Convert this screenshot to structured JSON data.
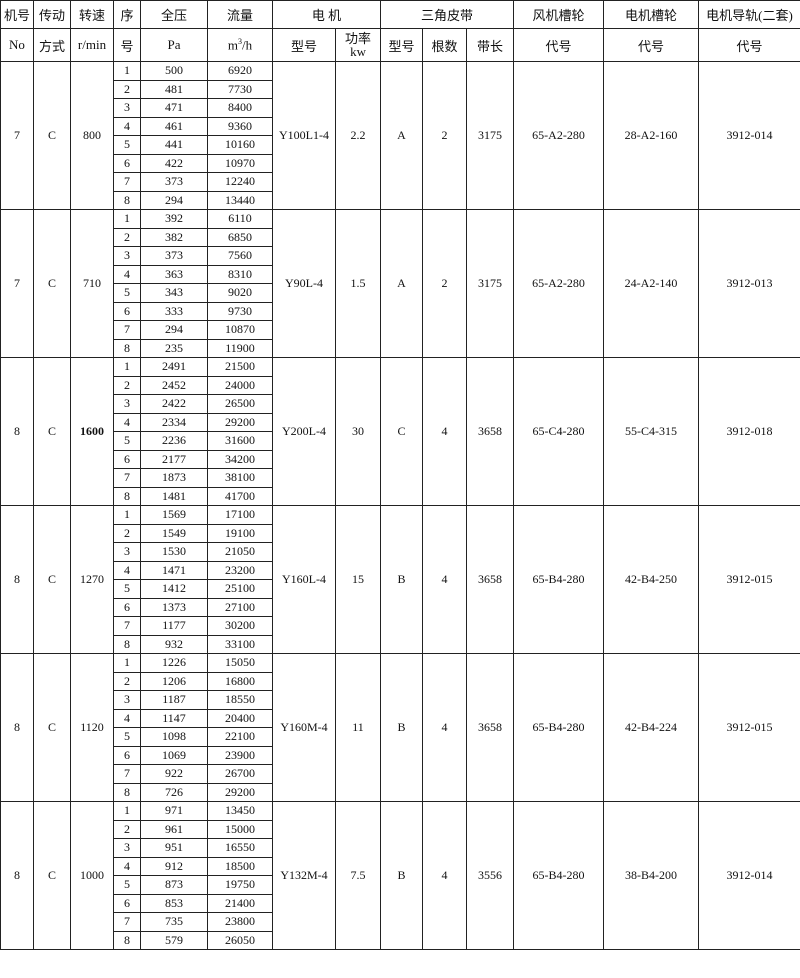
{
  "header": {
    "no_top": "机号",
    "no_bottom": "No",
    "drive_top": "传动",
    "drive_bottom": "方式",
    "speed_top": "转速",
    "speed_bottom": "r/min",
    "seq_top": "序",
    "seq_bottom": "号",
    "pressure_top": "全压",
    "pressure_bottom": "Pa",
    "flow_top": "流量",
    "flow_unit_m": "m",
    "flow_unit_sup": "3",
    "flow_unit_h": "/h",
    "motor": "电 机",
    "motor_model": "型号",
    "motor_power": "功率",
    "motor_power_unit": "kw",
    "belt": "三角皮带",
    "belt_model": "型号",
    "belt_count": "根数",
    "belt_length": "带长",
    "fan_pulley": "风机槽轮",
    "fan_pulley_code": "代号",
    "motor_pulley": "电机槽轮",
    "motor_pulley_code": "代号",
    "rail": "电机导轨(二套)",
    "rail_code": "代号"
  },
  "groups": [
    {
      "no": "7",
      "drive": "C",
      "speed": "800",
      "motor_model": "Y100L1-4",
      "power": "2.2",
      "belt_model": "A",
      "belt_count": "2",
      "belt_length": "3175",
      "fan_pulley": "65-A2-280",
      "motor_pulley": "28-A2-160",
      "rail": "3912-014",
      "bold": false,
      "rows": [
        [
          "1",
          "500",
          "6920"
        ],
        [
          "2",
          "481",
          "7730"
        ],
        [
          "3",
          "471",
          "8400"
        ],
        [
          "4",
          "461",
          "9360"
        ],
        [
          "5",
          "441",
          "10160"
        ],
        [
          "6",
          "422",
          "10970"
        ],
        [
          "7",
          "373",
          "12240"
        ],
        [
          "8",
          "294",
          "13440"
        ]
      ]
    },
    {
      "no": "7",
      "drive": "C",
      "speed": "710",
      "motor_model": "Y90L-4",
      "power": "1.5",
      "belt_model": "A",
      "belt_count": "2",
      "belt_length": "3175",
      "fan_pulley": "65-A2-280",
      "motor_pulley": "24-A2-140",
      "rail": "3912-013",
      "bold": false,
      "rows": [
        [
          "1",
          "392",
          "6110"
        ],
        [
          "2",
          "382",
          "6850"
        ],
        [
          "3",
          "373",
          "7560"
        ],
        [
          "4",
          "363",
          "8310"
        ],
        [
          "5",
          "343",
          "9020"
        ],
        [
          "6",
          "333",
          "9730"
        ],
        [
          "7",
          "294",
          "10870"
        ],
        [
          "8",
          "235",
          "11900"
        ]
      ]
    },
    {
      "no": "8",
      "drive": "C",
      "speed": "1600",
      "motor_model": "Y200L-4",
      "power": "30",
      "belt_model": "C",
      "belt_count": "4",
      "belt_length": "3658",
      "fan_pulley": "65-C4-280",
      "motor_pulley": "55-C4-315",
      "rail": "3912-018",
      "bold": true,
      "rows": [
        [
          "1",
          "2491",
          "21500"
        ],
        [
          "2",
          "2452",
          "24000"
        ],
        [
          "3",
          "2422",
          "26500"
        ],
        [
          "4",
          "2334",
          "29200"
        ],
        [
          "5",
          "2236",
          "31600"
        ],
        [
          "6",
          "2177",
          "34200"
        ],
        [
          "7",
          "1873",
          "38100"
        ],
        [
          "8",
          "1481",
          "41700"
        ]
      ]
    },
    {
      "no": "8",
      "drive": "C",
      "speed": "1270",
      "motor_model": "Y160L-4",
      "power": "15",
      "belt_model": "B",
      "belt_count": "4",
      "belt_length": "3658",
      "fan_pulley": "65-B4-280",
      "motor_pulley": "42-B4-250",
      "rail": "3912-015",
      "bold": false,
      "rows": [
        [
          "1",
          "1569",
          "17100"
        ],
        [
          "2",
          "1549",
          "19100"
        ],
        [
          "3",
          "1530",
          "21050"
        ],
        [
          "4",
          "1471",
          "23200"
        ],
        [
          "5",
          "1412",
          "25100"
        ],
        [
          "6",
          "1373",
          "27100"
        ],
        [
          "7",
          "1177",
          "30200"
        ],
        [
          "8",
          "932",
          "33100"
        ]
      ]
    },
    {
      "no": "8",
      "drive": "C",
      "speed": "1120",
      "motor_model": "Y160M-4",
      "power": "11",
      "belt_model": "B",
      "belt_count": "4",
      "belt_length": "3658",
      "fan_pulley": "65-B4-280",
      "motor_pulley": "42-B4-224",
      "rail": "3912-015",
      "bold": false,
      "rows": [
        [
          "1",
          "1226",
          "15050"
        ],
        [
          "2",
          "1206",
          "16800"
        ],
        [
          "3",
          "1187",
          "18550"
        ],
        [
          "4",
          "1147",
          "20400"
        ],
        [
          "5",
          "1098",
          "22100"
        ],
        [
          "6",
          "1069",
          "23900"
        ],
        [
          "7",
          "922",
          "26700"
        ],
        [
          "8",
          "726",
          "29200"
        ]
      ]
    },
    {
      "no": "8",
      "drive": "C",
      "speed": "1000",
      "motor_model": "Y132M-4",
      "power": "7.5",
      "belt_model": "B",
      "belt_count": "4",
      "belt_length": "3556",
      "fan_pulley": "65-B4-280",
      "motor_pulley": "38-B4-200",
      "rail": "3912-014",
      "bold": false,
      "rows": [
        [
          "1",
          "971",
          "13450"
        ],
        [
          "2",
          "961",
          "15000"
        ],
        [
          "3",
          "951",
          "16550"
        ],
        [
          "4",
          "912",
          "18500"
        ],
        [
          "5",
          "873",
          "19750"
        ],
        [
          "6",
          "853",
          "21400"
        ],
        [
          "7",
          "735",
          "23800"
        ],
        [
          "8",
          "579",
          "26050"
        ]
      ]
    }
  ]
}
